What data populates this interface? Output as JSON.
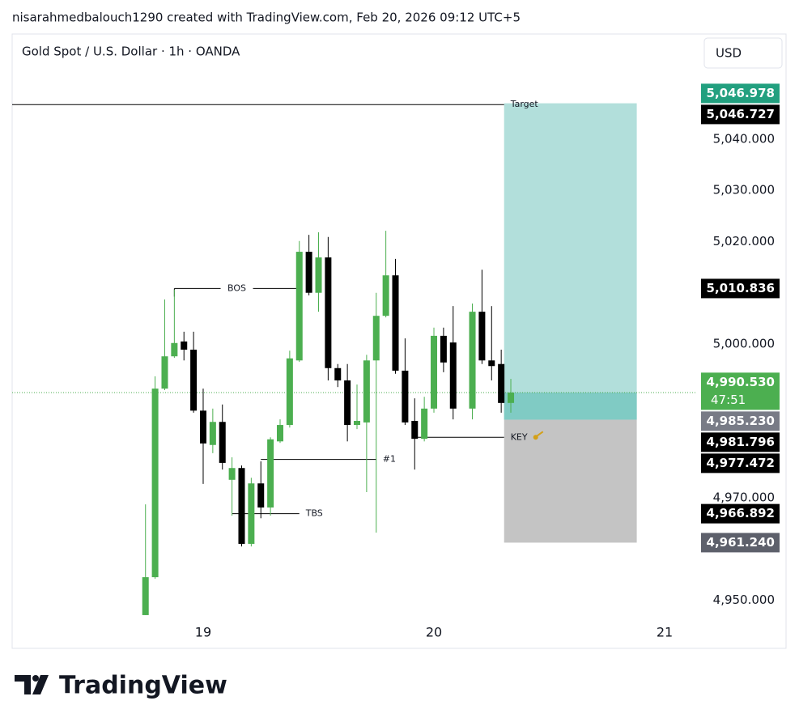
{
  "header": "nisarahmedbalouch1290 created with TradingView.com, Feb 20, 2026 09:12 UTC+5",
  "footer_logo": "TradingView",
  "chart_data": {
    "type": "candlestick",
    "title": "Gold Spot / U.S. Dollar · 1h · OANDA",
    "currency": "USD",
    "x": [
      -6,
      -5,
      -4,
      -3,
      -2,
      -1,
      0,
      1,
      2,
      3,
      4,
      5,
      6,
      7,
      8,
      9,
      10,
      11,
      12,
      13,
      14,
      15,
      16,
      17,
      18,
      19,
      20,
      21,
      22,
      23,
      24,
      25,
      26,
      28,
      29,
      30,
      31,
      32
    ],
    "open": [
      4947.1,
      4954.5,
      4991.3,
      4997.6,
      5000.5,
      4998.9,
      4987.0,
      4980.3,
      4984.8,
      4973.5,
      4975.8,
      4961.0,
      4972.8,
      4968.1,
      4981.0,
      4984.2,
      4996.8,
      5018.0,
      5010.0,
      5016.9,
      4995.3,
      4992.9,
      4984.2,
      4984.7,
      4996.8,
      5005.5,
      5013.4,
      4994.8,
      4985.0,
      4981.5,
      4987.4,
      5001.6,
      5000.3,
      4987.4,
      5006.3,
      4996.8,
      4996.1,
      4988.5
    ],
    "high": [
      4968.7,
      4993.7,
      5008.7,
      5010.6,
      5002.4,
      5002.4,
      4991.3,
      4987.4,
      4988.2,
      4977.9,
      4976.3,
      4973.9,
      4977.1,
      4981.8,
      4985.3,
      4998.7,
      5020.1,
      5021.3,
      5021.8,
      5020.9,
      4996.1,
      4996.1,
      4992.1,
      4997.9,
      5010.0,
      5022.1,
      5016.6,
      5001.1,
      4989.4,
      4989.7,
      5003.2,
      5003.2,
      5007.4,
      5007.9,
      5014.5,
      5007.4,
      4998.9,
      4993.2
    ],
    "low": [
      4947.1,
      4954.2,
      4991.0,
      4997.3,
      4996.8,
      4986.6,
      4972.7,
      4978.7,
      4975.5,
      4966.5,
      4960.5,
      4960.5,
      4966.0,
      4966.5,
      4980.7,
      4983.7,
      4996.5,
      5009.5,
      5006.3,
      4992.9,
      4991.6,
      4981.0,
      4983.4,
      4971.1,
      4963.2,
      5005.2,
      4994.2,
      4984.2,
      4975.5,
      4981.0,
      4986.6,
      4994.5,
      4985.3,
      4985.3,
      4996.1,
      4992.9,
      4986.6,
      4986.6
    ],
    "close": [
      4954.5,
      4991.3,
      4997.6,
      5000.2,
      4998.9,
      4987.0,
      4980.6,
      4984.8,
      4976.8,
      4975.8,
      4961.0,
      4972.8,
      4968.1,
      4981.4,
      4984.2,
      4997.2,
      5018.0,
      5010.0,
      5016.9,
      4995.3,
      4992.9,
      4984.2,
      4985.0,
      4996.8,
      5005.5,
      5013.4,
      4994.8,
      4984.7,
      4981.5,
      4987.4,
      5001.6,
      4996.4,
      4987.4,
      5006.3,
      4996.8,
      4995.7,
      4988.5,
      4990.53
    ],
    "up_color": "#4caf50",
    "down_color": "#000000",
    "xlim": [
      -19.87,
      51.28
    ],
    "xticks": [
      {
        "value": 0,
        "label": "19"
      },
      {
        "value": 24,
        "label": "20"
      },
      {
        "value": 48,
        "label": "21"
      }
    ],
    "ylim": [
      4946.3,
      5060.5
    ],
    "yticks": [
      {
        "value": 5040,
        "label": "5,040.000"
      },
      {
        "value": 5030,
        "label": "5,030.000"
      },
      {
        "value": 5020,
        "label": "5,020.000"
      },
      {
        "value": 5000,
        "label": "5,000.000"
      },
      {
        "value": 4970,
        "label": "4,970.000"
      },
      {
        "value": 4950,
        "label": "4,950.000"
      }
    ],
    "grid": false,
    "lines": [
      {
        "label": "Target",
        "value": 5046.727,
        "x": [
          -19.87,
          31.3
        ],
        "label_position": "end"
      },
      {
        "label": "BOS",
        "value": 5010.836,
        "x": [
          -3,
          10
        ],
        "label_position": "middle"
      },
      {
        "label": "#1",
        "value": 4977.472,
        "x": [
          6,
          18
        ],
        "label_position": "end"
      },
      {
        "label": "TBS",
        "value": 4966.892,
        "x": [
          3,
          10
        ],
        "label_position": "end"
      },
      {
        "label": "KEY",
        "value": 4981.796,
        "x": [
          22,
          31.3
        ],
        "label_position": "end"
      }
    ],
    "position": {
      "entry": 4985.23,
      "target": 5046.978,
      "stop": 4961.24,
      "x": [
        31.3,
        45.1
      ],
      "profit_color": "#b2dfdb",
      "filled_color": "#80cbc4",
      "loss_color": "#c4c4c4"
    },
    "last_price": {
      "value": 4990.53,
      "color": "#4caf50"
    },
    "price_labels": [
      {
        "value": 5046.978,
        "label": "5,046.978",
        "color": "#22a07f"
      },
      {
        "value": 5046.727,
        "label": "5,046.727",
        "color": "#000000"
      },
      {
        "value": 5010.836,
        "label": "5,010.836",
        "color": "#000000"
      },
      {
        "value": 4990.53,
        "label": "4,990.530",
        "color": "#4caf50",
        "countdown": "47:51"
      },
      {
        "value": 4985.23,
        "label": "4,985.230",
        "color": "#787b86"
      },
      {
        "value": 4981.796,
        "label": "4,981.796",
        "color": "#000000"
      },
      {
        "value": 4977.472,
        "label": "4,977.472",
        "color": "#000000"
      },
      {
        "value": 4966.892,
        "label": "4,966.892",
        "color": "#000000"
      },
      {
        "value": 4961.24,
        "label": "4,961.240",
        "color": "#5d606b"
      }
    ]
  }
}
